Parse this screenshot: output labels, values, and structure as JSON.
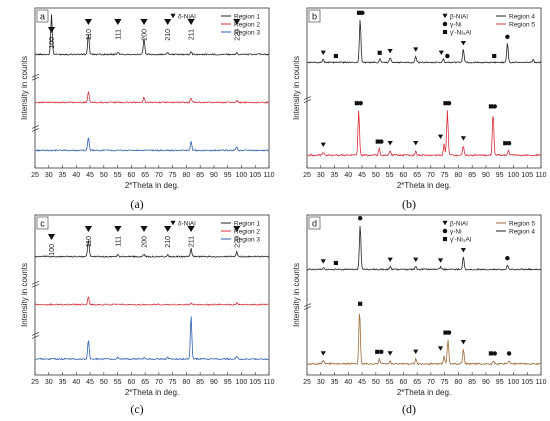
{
  "captions": [
    "(a)",
    "(b)",
    "(c)",
    "(d)"
  ],
  "chart_data": [
    {
      "type": "line",
      "panel_label": "a",
      "xlabel": "2*Theta in deg.",
      "ylabel": "Intensity in counts",
      "xlim": [
        25,
        110
      ],
      "xticks": [
        25,
        30,
        35,
        40,
        45,
        50,
        55,
        60,
        65,
        70,
        75,
        80,
        85,
        90,
        95,
        100,
        105,
        110
      ],
      "legend_position": "top-right",
      "legend": {
        "markers": [
          {
            "symbol": "triangle-down",
            "label": "δ-NiAl"
          }
        ],
        "lines": [
          {
            "name": "Region 1",
            "color": "#222222"
          },
          {
            "name": "Region 2",
            "color": "#d9303a"
          },
          {
            "name": "Region 3",
            "color": "#2f5fb0"
          }
        ]
      },
      "series": [
        {
          "name": "Region 1",
          "color": "#222222",
          "baseline": 0.71,
          "noise": 0.004,
          "peaks": [
            [
              31,
              0.25
            ],
            [
              44.4,
              0.13
            ],
            [
              55.1,
              0.015
            ],
            [
              64.6,
              0.1
            ],
            [
              73.2,
              0.012
            ],
            [
              81.7,
              0.018
            ],
            [
              98.3,
              0.012
            ]
          ]
        },
        {
          "name": "Region 2",
          "color": "#d9303a",
          "baseline": 0.41,
          "noise": 0.004,
          "peaks": [
            [
              44.4,
              0.07
            ],
            [
              64.6,
              0.03
            ],
            [
              81.7,
              0.03
            ],
            [
              98.3,
              0.01
            ]
          ]
        },
        {
          "name": "Region 3",
          "color": "#2f5fb0",
          "baseline": 0.11,
          "noise": 0.004,
          "peaks": [
            [
              44.4,
              0.08
            ],
            [
              81.7,
              0.06
            ],
            [
              98.3,
              0.02
            ]
          ]
        }
      ],
      "annotations": [
        {
          "x": 31,
          "marker": "triangle-down",
          "text": "100"
        },
        {
          "x": 44.4,
          "marker": "triangle-down",
          "text": "110"
        },
        {
          "x": 55.1,
          "marker": "triangle-down",
          "text": "111"
        },
        {
          "x": 64.6,
          "marker": "triangle-down",
          "text": "200"
        },
        {
          "x": 73.2,
          "marker": "triangle-down",
          "text": "210"
        },
        {
          "x": 81.7,
          "marker": "triangle-down",
          "text": "211"
        },
        {
          "x": 98.3,
          "marker": "triangle-down",
          "text": "220"
        }
      ]
    },
    {
      "type": "line",
      "panel_label": "b",
      "xlabel": "2*Theta in deg.",
      "ylabel": "Intensity in counts",
      "xlim": [
        25,
        110
      ],
      "xticks": [
        25,
        30,
        35,
        40,
        45,
        50,
        55,
        60,
        65,
        70,
        75,
        80,
        85,
        90,
        95,
        100,
        105,
        110
      ],
      "legend_position": "top-right",
      "legend": {
        "markers": [
          {
            "symbol": "triangle-down",
            "label": "β-NiAl"
          },
          {
            "symbol": "circle",
            "label": "γ-Ni"
          },
          {
            "symbol": "square",
            "label": "γ'-Ni₃Al"
          }
        ],
        "lines": [
          {
            "name": "Region 4",
            "color": "#222222"
          },
          {
            "name": "Region 5",
            "color": "#d9303a"
          }
        ]
      },
      "series": [
        {
          "name": "Region 4",
          "color": "#222222",
          "baseline": 0.66,
          "noise": 0.004,
          "peaks": [
            [
              30.9,
              0.02
            ],
            [
              44.3,
              0.27
            ],
            [
              51.5,
              0.02
            ],
            [
              55.2,
              0.03
            ],
            [
              64.5,
              0.04
            ],
            [
              74.5,
              0.02
            ],
            [
              81.8,
              0.08
            ],
            [
              97.8,
              0.12
            ],
            [
              107.2,
              0.02
            ]
          ]
        },
        {
          "name": "Region 5",
          "color": "#d9303a",
          "baseline": 0.08,
          "noise": 0.005,
          "peaks": [
            [
              30.9,
              0.02
            ],
            [
              43.8,
              0.28
            ],
            [
              51.2,
              0.04
            ],
            [
              55.2,
              0.03
            ],
            [
              64.5,
              0.03
            ],
            [
              74.8,
              0.07
            ],
            [
              76.0,
              0.28
            ],
            [
              81.8,
              0.06
            ],
            [
              92.6,
              0.26
            ],
            [
              98.2,
              0.03
            ]
          ]
        }
      ],
      "annotations": [
        {
          "x": 30.9,
          "marker": "triangle-down",
          "row": 1
        },
        {
          "x": 35.5,
          "marker": "square",
          "row": 1
        },
        {
          "x": 43.9,
          "marker": "square",
          "row": 1
        },
        {
          "x": 45.1,
          "marker": "circle",
          "row": 1
        },
        {
          "x": 51.4,
          "marker": "square",
          "row": 1
        },
        {
          "x": 55.2,
          "marker": "triangle-down",
          "row": 1
        },
        {
          "x": 64.5,
          "marker": "triangle-down",
          "row": 1
        },
        {
          "x": 73.8,
          "marker": "triangle-down",
          "row": 1
        },
        {
          "x": 76.0,
          "marker": "circle",
          "row": 1
        },
        {
          "x": 81.8,
          "marker": "triangle-down",
          "row": 1
        },
        {
          "x": 93.0,
          "marker": "square",
          "row": 1
        },
        {
          "x": 97.8,
          "marker": "circle",
          "row": 1
        },
        {
          "x": 30.9,
          "marker": "triangle-down",
          "row": 2
        },
        {
          "x": 43.1,
          "marker": "square",
          "row": 2
        },
        {
          "x": 44.5,
          "marker": "circle",
          "row": 2
        },
        {
          "x": 50.7,
          "marker": "square",
          "row": 2
        },
        {
          "x": 52.0,
          "marker": "circle",
          "row": 2
        },
        {
          "x": 55.2,
          "marker": "triangle-down",
          "row": 2
        },
        {
          "x": 64.5,
          "marker": "triangle-down",
          "row": 2
        },
        {
          "x": 73.5,
          "marker": "triangle-down",
          "row": 2
        },
        {
          "x": 75.3,
          "marker": "square",
          "row": 2
        },
        {
          "x": 76.6,
          "marker": "circle",
          "row": 2
        },
        {
          "x": 81.8,
          "marker": "triangle-down",
          "row": 2
        },
        {
          "x": 91.8,
          "marker": "square",
          "row": 2
        },
        {
          "x": 93.2,
          "marker": "circle",
          "row": 2
        },
        {
          "x": 97.0,
          "marker": "square",
          "row": 2
        },
        {
          "x": 98.4,
          "marker": "circle",
          "row": 2
        }
      ]
    },
    {
      "type": "line",
      "panel_label": "c",
      "xlabel": "2*Theta in deg.",
      "ylabel": "Intensity in counts",
      "xlim": [
        25,
        110
      ],
      "xticks": [
        25,
        30,
        35,
        40,
        45,
        50,
        55,
        60,
        65,
        70,
        75,
        80,
        85,
        90,
        95,
        100,
        105,
        110
      ],
      "legend_position": "top-right",
      "legend": {
        "markers": [
          {
            "symbol": "triangle-down",
            "label": "δ-NiAl"
          }
        ],
        "lines": [
          {
            "name": "Region 1",
            "color": "#222222"
          },
          {
            "name": "Region 2",
            "color": "#d9303a"
          },
          {
            "name": "Region 3",
            "color": "#2f5fb0"
          }
        ]
      },
      "series": [
        {
          "name": "Region 1",
          "color": "#222222",
          "baseline": 0.74,
          "noise": 0.004,
          "peaks": [
            [
              44.4,
              0.11
            ],
            [
              55.1,
              0.012
            ],
            [
              64.6,
              0.012
            ],
            [
              73.2,
              0.01
            ],
            [
              81.7,
              0.05
            ],
            [
              98.3,
              0.03
            ]
          ]
        },
        {
          "name": "Region 2",
          "color": "#d9303a",
          "baseline": 0.44,
          "noise": 0.004,
          "peaks": [
            [
              44.4,
              0.05
            ],
            [
              81.7,
              0.01
            ],
            [
              98.3,
              0.01
            ]
          ]
        },
        {
          "name": "Region 3",
          "color": "#2f5fb0",
          "baseline": 0.1,
          "noise": 0.004,
          "peaks": [
            [
              44.4,
              0.12
            ],
            [
              55.1,
              0.01
            ],
            [
              64.6,
              0.01
            ],
            [
              73.2,
              0.01
            ],
            [
              81.7,
              0.27
            ],
            [
              98.3,
              0.02
            ]
          ]
        }
      ],
      "annotations": [
        {
          "x": 31,
          "marker": "triangle-down",
          "text": "100"
        },
        {
          "x": 44.4,
          "marker": "triangle-down",
          "text": "110"
        },
        {
          "x": 55.1,
          "marker": "triangle-down",
          "text": "111"
        },
        {
          "x": 64.6,
          "marker": "triangle-down",
          "text": "200"
        },
        {
          "x": 73.2,
          "marker": "triangle-down",
          "text": "210"
        },
        {
          "x": 81.7,
          "marker": "triangle-down",
          "text": "211"
        },
        {
          "x": 98.3,
          "marker": "triangle-down",
          "text": "220"
        }
      ]
    },
    {
      "type": "line",
      "panel_label": "d",
      "xlabel": "2*Theta in deg.",
      "ylabel": "Intensity in counts",
      "xlim": [
        25,
        110
      ],
      "xticks": [
        25,
        30,
        35,
        40,
        45,
        50,
        55,
        60,
        65,
        70,
        75,
        80,
        85,
        90,
        95,
        100,
        105,
        110
      ],
      "legend_position": "top-right",
      "legend": {
        "markers": [
          {
            "symbol": "triangle-down",
            "label": "β-NiAl"
          },
          {
            "symbol": "circle",
            "label": "γ-Ni"
          },
          {
            "symbol": "square",
            "label": "γ'-Ni₃Al"
          }
        ],
        "lines": [
          {
            "name": "Region 5",
            "color": "#9b6a3a"
          },
          {
            "name": "Region 4",
            "color": "#222222"
          }
        ]
      },
      "series": [
        {
          "name": "Region 4",
          "color": "#222222",
          "baseline": 0.66,
          "noise": 0.004,
          "peaks": [
            [
              30.9,
              0.01
            ],
            [
              44.3,
              0.28
            ],
            [
              55.2,
              0.02
            ],
            [
              64.5,
              0.02
            ],
            [
              73.5,
              0.015
            ],
            [
              81.8,
              0.08
            ],
            [
              97.8,
              0.03
            ]
          ]
        },
        {
          "name": "Region 5",
          "color": "#9b6a3a",
          "baseline": 0.07,
          "noise": 0.005,
          "peaks": [
            [
              30.9,
              0.02
            ],
            [
              44.1,
              0.33
            ],
            [
              51.3,
              0.03
            ],
            [
              55.2,
              0.02
            ],
            [
              64.5,
              0.03
            ],
            [
              74.8,
              0.05
            ],
            [
              76.2,
              0.15
            ],
            [
              81.8,
              0.09
            ],
            [
              92.8,
              0.02
            ],
            [
              98.4,
              0.02
            ]
          ]
        }
      ],
      "annotations": [
        {
          "x": 30.9,
          "marker": "triangle-down",
          "row": 1
        },
        {
          "x": 35.5,
          "marker": "square",
          "row": 1
        },
        {
          "x": 44.3,
          "marker": "circle",
          "row": 1
        },
        {
          "x": 55.2,
          "marker": "triangle-down",
          "row": 1
        },
        {
          "x": 64.5,
          "marker": "triangle-down",
          "row": 1
        },
        {
          "x": 73.5,
          "marker": "triangle-down",
          "row": 1
        },
        {
          "x": 81.8,
          "marker": "triangle-down",
          "row": 1
        },
        {
          "x": 97.8,
          "marker": "circle",
          "row": 1
        },
        {
          "x": 30.9,
          "marker": "triangle-down",
          "row": 2
        },
        {
          "x": 44.3,
          "marker": "square",
          "row": 2
        },
        {
          "x": 50.5,
          "marker": "square",
          "row": 2
        },
        {
          "x": 52.0,
          "marker": "circle",
          "row": 2
        },
        {
          "x": 55.2,
          "marker": "triangle-down",
          "row": 2
        },
        {
          "x": 64.5,
          "marker": "triangle-down",
          "row": 2
        },
        {
          "x": 73.5,
          "marker": "triangle-down",
          "row": 2
        },
        {
          "x": 75.3,
          "marker": "square",
          "row": 2
        },
        {
          "x": 76.6,
          "marker": "circle",
          "row": 2
        },
        {
          "x": 81.8,
          "marker": "triangle-down",
          "row": 2
        },
        {
          "x": 91.8,
          "marker": "square",
          "row": 2
        },
        {
          "x": 93.2,
          "marker": "circle",
          "row": 2
        },
        {
          "x": 98.4,
          "marker": "circle",
          "row": 2
        }
      ]
    }
  ]
}
